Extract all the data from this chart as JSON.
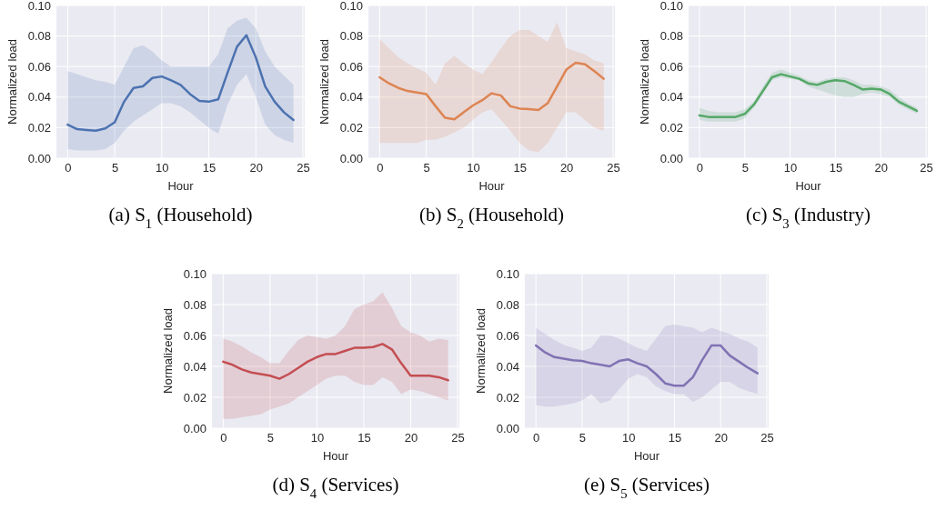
{
  "chart_data": [
    {
      "type": "line",
      "title": "(a) S$_{1}$ (Household)",
      "xlabel": "Hour",
      "ylabel": "Normalized load",
      "grid": true,
      "xlim": [
        -1.2,
        25.2
      ],
      "xticks": [
        0,
        5,
        10,
        15,
        20,
        25
      ],
      "ylim": [
        0,
        0.1
      ],
      "yticks": [
        {
          "value": 0,
          "label": "0.00"
        },
        {
          "value": 0.02,
          "label": "0.02"
        },
        {
          "value": 0.04,
          "label": "0.04"
        },
        {
          "value": 0.06,
          "label": "0.06"
        },
        {
          "value": 0.08,
          "label": "0.08"
        },
        {
          "value": 0.1,
          "label": "0.10"
        }
      ],
      "x": [
        0,
        1,
        2,
        3,
        4,
        5,
        6,
        7,
        8,
        9,
        10,
        11,
        12,
        13,
        14,
        15,
        16,
        17,
        18,
        19,
        20,
        21,
        22,
        23,
        24
      ],
      "series": [
        {
          "color": "#4c72b0",
          "values": [
            0.022,
            0.019,
            0.0185,
            0.018,
            0.0195,
            0.0235,
            0.037,
            0.046,
            0.047,
            0.0525,
            0.0535,
            0.051,
            0.048,
            0.042,
            0.0375,
            0.037,
            0.0385,
            0.056,
            0.073,
            0.0805,
            0.066,
            0.047,
            0.037,
            0.03,
            0.025
          ],
          "lower": [
            0.006,
            0.005,
            0.005,
            0.005,
            0.006,
            0.01,
            0.018,
            0.024,
            0.028,
            0.032,
            0.036,
            0.036,
            0.034,
            0.03,
            0.025,
            0.02,
            0.016,
            0.035,
            0.048,
            0.055,
            0.04,
            0.022,
            0.015,
            0.012,
            0.01
          ],
          "upper": [
            0.057,
            0.055,
            0.053,
            0.051,
            0.05,
            0.048,
            0.06,
            0.072,
            0.074,
            0.07,
            0.064,
            0.06,
            0.06,
            0.06,
            0.06,
            0.06,
            0.068,
            0.085,
            0.09,
            0.092,
            0.085,
            0.07,
            0.06,
            0.054,
            0.048
          ]
        }
      ]
    },
    {
      "type": "line",
      "title": "(b) S$_{2}$ (Household)",
      "xlabel": "Hour",
      "ylabel": "Normalized load",
      "grid": true,
      "xlim": [
        -1.2,
        25.2
      ],
      "xticks": [
        0,
        5,
        10,
        15,
        20,
        25
      ],
      "ylim": [
        0,
        0.1
      ],
      "yticks": [
        {
          "value": 0,
          "label": "0.00"
        },
        {
          "value": 0.02,
          "label": "0.02"
        },
        {
          "value": 0.04,
          "label": "0.04"
        },
        {
          "value": 0.06,
          "label": "0.06"
        },
        {
          "value": 0.08,
          "label": "0.08"
        },
        {
          "value": 0.1,
          "label": "0.10"
        }
      ],
      "x": [
        0,
        1,
        2,
        3,
        4,
        5,
        6,
        7,
        8,
        9,
        10,
        11,
        12,
        13,
        14,
        15,
        16,
        17,
        18,
        19,
        20,
        21,
        22,
        23,
        24
      ],
      "series": [
        {
          "color": "#dd8452",
          "values": [
            0.053,
            0.049,
            0.046,
            0.044,
            0.043,
            0.042,
            0.034,
            0.0265,
            0.0255,
            0.03,
            0.0345,
            0.038,
            0.0425,
            0.041,
            0.034,
            0.0325,
            0.0322,
            0.0315,
            0.036,
            0.047,
            0.058,
            0.0625,
            0.0615,
            0.057,
            0.052
          ],
          "lower": [
            0.01,
            0.01,
            0.01,
            0.01,
            0.01,
            0.012,
            0.012,
            0.014,
            0.017,
            0.02,
            0.025,
            0.03,
            0.032,
            0.025,
            0.018,
            0.01,
            0.005,
            0.004,
            0.01,
            0.02,
            0.03,
            0.03,
            0.025,
            0.02,
            0.018
          ],
          "upper": [
            0.078,
            0.072,
            0.066,
            0.062,
            0.059,
            0.056,
            0.048,
            0.062,
            0.067,
            0.062,
            0.058,
            0.055,
            0.063,
            0.072,
            0.08,
            0.084,
            0.084,
            0.08,
            0.076,
            0.089,
            0.072,
            0.07,
            0.068,
            0.064,
            0.062
          ]
        }
      ]
    },
    {
      "type": "line",
      "title": "(c) S$_{3}$ (Industry)",
      "xlabel": "Hour",
      "ylabel": "Normalized load",
      "grid": true,
      "xlim": [
        -1.2,
        25.2
      ],
      "xticks": [
        0,
        5,
        10,
        15,
        20,
        25
      ],
      "ylim": [
        0,
        0.1
      ],
      "yticks": [
        {
          "value": 0,
          "label": "0.00"
        },
        {
          "value": 0.02,
          "label": "0.02"
        },
        {
          "value": 0.04,
          "label": "0.04"
        },
        {
          "value": 0.06,
          "label": "0.06"
        },
        {
          "value": 0.08,
          "label": "0.08"
        },
        {
          "value": 0.1,
          "label": "0.10"
        }
      ],
      "x": [
        0,
        1,
        2,
        3,
        4,
        5,
        6,
        7,
        8,
        9,
        10,
        11,
        12,
        13,
        14,
        15,
        16,
        17,
        18,
        19,
        20,
        21,
        22,
        23,
        24
      ],
      "series": [
        {
          "color": "#55a868",
          "values": [
            0.028,
            0.027,
            0.027,
            0.027,
            0.027,
            0.029,
            0.035,
            0.044,
            0.053,
            0.055,
            0.0535,
            0.052,
            0.049,
            0.048,
            0.05,
            0.051,
            0.0505,
            0.048,
            0.045,
            0.0455,
            0.045,
            0.042,
            0.037,
            0.034,
            0.031
          ],
          "lower": [
            0.025,
            0.024,
            0.024,
            0.024,
            0.024,
            0.026,
            0.033,
            0.042,
            0.051,
            0.053,
            0.052,
            0.051,
            0.047,
            0.045,
            0.043,
            0.041,
            0.04,
            0.04,
            0.042,
            0.043,
            0.042,
            0.04,
            0.035,
            0.032,
            0.029
          ],
          "upper": [
            0.033,
            0.031,
            0.03,
            0.03,
            0.03,
            0.032,
            0.037,
            0.047,
            0.056,
            0.058,
            0.056,
            0.054,
            0.051,
            0.05,
            0.052,
            0.053,
            0.053,
            0.051,
            0.048,
            0.048,
            0.047,
            0.045,
            0.04,
            0.036,
            0.033
          ]
        }
      ]
    },
    {
      "type": "line",
      "title": "(d) S$_{4}$ (Services)",
      "xlabel": "Hour",
      "ylabel": "Normalized load",
      "grid": true,
      "xlim": [
        -1.2,
        25.2
      ],
      "xticks": [
        0,
        5,
        10,
        15,
        20,
        25
      ],
      "ylim": [
        0,
        0.1
      ],
      "yticks": [
        {
          "value": 0,
          "label": "0.00"
        },
        {
          "value": 0.02,
          "label": "0.02"
        },
        {
          "value": 0.04,
          "label": "0.04"
        },
        {
          "value": 0.06,
          "label": "0.06"
        },
        {
          "value": 0.08,
          "label": "0.08"
        },
        {
          "value": 0.1,
          "label": "0.10"
        }
      ],
      "x": [
        0,
        1,
        2,
        3,
        4,
        5,
        6,
        7,
        8,
        9,
        10,
        11,
        12,
        13,
        14,
        15,
        16,
        17,
        18,
        19,
        20,
        21,
        22,
        23,
        24
      ],
      "series": [
        {
          "color": "#c44e52",
          "values": [
            0.043,
            0.041,
            0.038,
            0.036,
            0.035,
            0.034,
            0.032,
            0.035,
            0.039,
            0.043,
            0.046,
            0.048,
            0.048,
            0.05,
            0.052,
            0.052,
            0.0525,
            0.0545,
            0.051,
            0.042,
            0.034,
            0.034,
            0.034,
            0.033,
            0.031
          ],
          "lower": [
            0.006,
            0.006,
            0.007,
            0.008,
            0.009,
            0.012,
            0.014,
            0.016,
            0.02,
            0.024,
            0.028,
            0.032,
            0.034,
            0.034,
            0.03,
            0.028,
            0.028,
            0.033,
            0.03,
            0.022,
            0.025,
            0.024,
            0.022,
            0.02,
            0.018
          ],
          "upper": [
            0.058,
            0.056,
            0.053,
            0.049,
            0.046,
            0.042,
            0.042,
            0.05,
            0.057,
            0.06,
            0.059,
            0.058,
            0.06,
            0.066,
            0.077,
            0.08,
            0.082,
            0.088,
            0.078,
            0.066,
            0.062,
            0.06,
            0.056,
            0.058,
            0.057
          ]
        }
      ]
    },
    {
      "type": "line",
      "title": "(e) S$_{5}$ (Services)",
      "xlabel": "Hour",
      "ylabel": "Normalized load",
      "grid": true,
      "xlim": [
        -1.2,
        25.2
      ],
      "xticks": [
        0,
        5,
        10,
        15,
        20,
        25
      ],
      "ylim": [
        0,
        0.1
      ],
      "yticks": [
        {
          "value": 0,
          "label": "0.00"
        },
        {
          "value": 0.02,
          "label": "0.02"
        },
        {
          "value": 0.04,
          "label": "0.04"
        },
        {
          "value": 0.06,
          "label": "0.06"
        },
        {
          "value": 0.08,
          "label": "0.08"
        },
        {
          "value": 0.1,
          "label": "0.10"
        }
      ],
      "x": [
        0,
        1,
        2,
        3,
        4,
        5,
        6,
        7,
        8,
        9,
        10,
        11,
        12,
        13,
        14,
        15,
        16,
        17,
        18,
        19,
        20,
        21,
        22,
        23,
        24
      ],
      "series": [
        {
          "color": "#8172b3",
          "values": [
            0.0535,
            0.049,
            0.046,
            0.045,
            0.044,
            0.0435,
            0.042,
            0.041,
            0.04,
            0.0435,
            0.0445,
            0.042,
            0.04,
            0.035,
            0.029,
            0.0275,
            0.0275,
            0.033,
            0.044,
            0.0535,
            0.0535,
            0.047,
            0.043,
            0.039,
            0.0355
          ],
          "lower": [
            0.015,
            0.014,
            0.014,
            0.015,
            0.016,
            0.018,
            0.022,
            0.016,
            0.018,
            0.025,
            0.032,
            0.035,
            0.033,
            0.027,
            0.024,
            0.022,
            0.022,
            0.017,
            0.02,
            0.025,
            0.03,
            0.03,
            0.026,
            0.024,
            0.022
          ],
          "upper": [
            0.065,
            0.061,
            0.057,
            0.054,
            0.052,
            0.05,
            0.052,
            0.06,
            0.06,
            0.058,
            0.055,
            0.052,
            0.05,
            0.058,
            0.066,
            0.067,
            0.066,
            0.065,
            0.062,
            0.065,
            0.063,
            0.061,
            0.058,
            0.056,
            0.052
          ]
        }
      ]
    }
  ]
}
